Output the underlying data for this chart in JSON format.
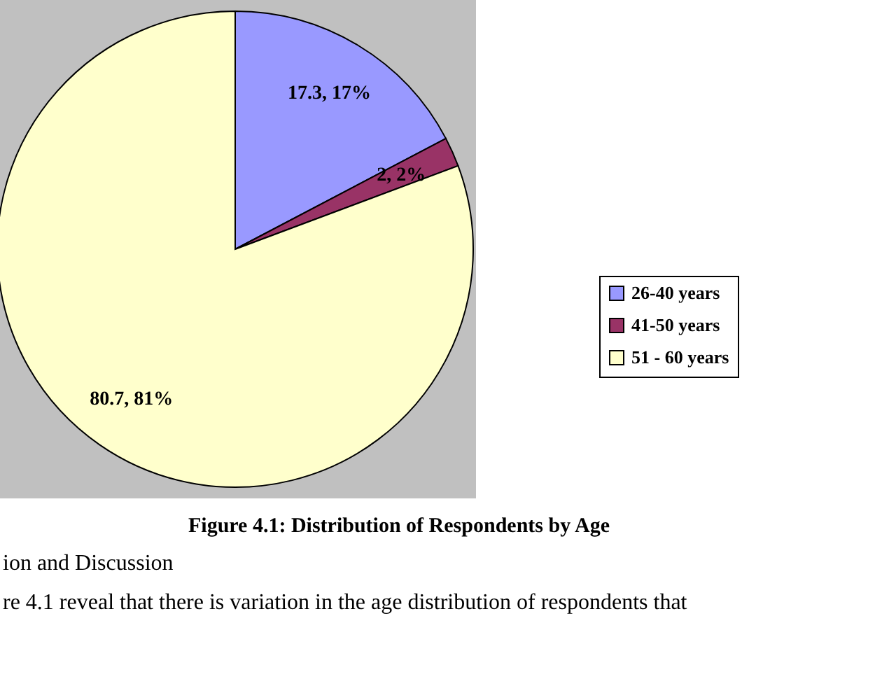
{
  "chart_data": {
    "type": "pie",
    "title": "Figure 4.1: Distribution of Respondents by Age",
    "categories": [
      "26-40 years",
      "41-50 years",
      "51 - 60 years"
    ],
    "values": [
      17.3,
      2,
      80.7
    ],
    "colors": [
      "#9999ff",
      "#993366",
      "#ffffcc"
    ],
    "value_labels": [
      "17.3, 17%",
      "2, 2%",
      "80.7, 81%"
    ],
    "legend": "right",
    "annotations": [
      "ion and Discussion",
      "re 4.1 reveal that there is variation in the age distribution of respondents that"
    ]
  }
}
